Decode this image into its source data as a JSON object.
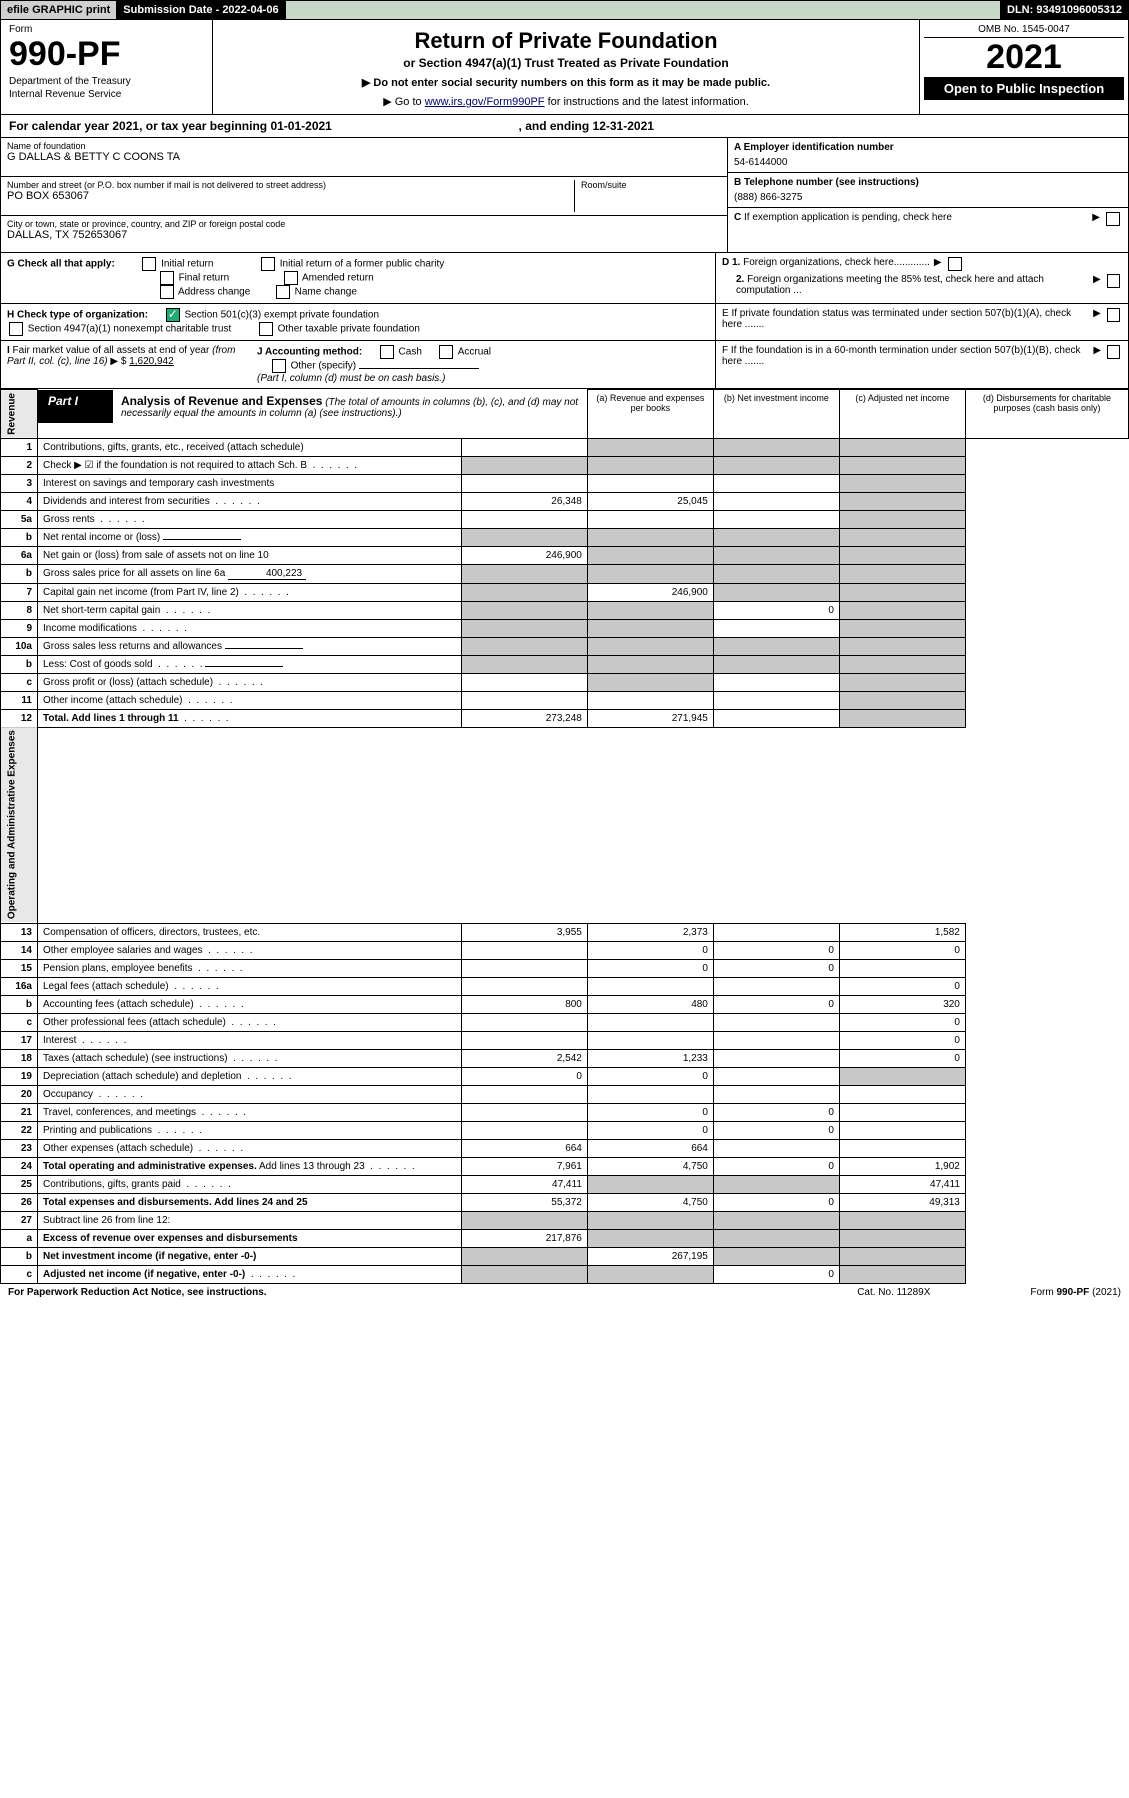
{
  "top": {
    "graphic": "efile GRAPHIC print",
    "submission_label": "Submission Date - 2022-04-06",
    "dln": "DLN: 93491096005312"
  },
  "header": {
    "form_word": "Form",
    "form_no": "990-PF",
    "dept1": "Department of the Treasury",
    "dept2": "Internal Revenue Service",
    "title": "Return of Private Foundation",
    "subtitle": "or Section 4947(a)(1) Trust Treated as Private Foundation",
    "instr1": "▶ Do not enter social security numbers on this form as it may be made public.",
    "instr2_pre": "▶ Go to ",
    "instr2_link": "www.irs.gov/Form990PF",
    "instr2_post": " for instructions and the latest information.",
    "omb": "OMB No. 1545-0047",
    "year": "2021",
    "open": "Open to Public Inspection"
  },
  "cal": {
    "line_pre": "For calendar year 2021, or tax year beginning ",
    "begin": "01-01-2021",
    "mid": ", and ending ",
    "end": "12-31-2021"
  },
  "info": {
    "name_label": "Name of foundation",
    "name": "G DALLAS & BETTY C COONS TA",
    "addr_label": "Number and street (or P.O. box number if mail is not delivered to street address)",
    "room_label": "Room/suite",
    "addr": "PO BOX 653067",
    "city_label": "City or town, state or province, country, and ZIP or foreign postal code",
    "city": "DALLAS, TX  752653067",
    "a_label": "A Employer identification number",
    "a_val": "54-6144000",
    "b_label": "B Telephone number (see instructions)",
    "b_val": "(888) 866-3275",
    "c_label": "C If exemption application is pending, check here",
    "d1": "D 1. Foreign organizations, check here.............",
    "d2": "2. Foreign organizations meeting the 85% test, check here and attach computation ...",
    "e": "E   If private foundation status was terminated under section 507(b)(1)(A), check here .......",
    "f": "F   If the foundation is in a 60-month termination under section 507(b)(1)(B), check here ......."
  },
  "g": {
    "label": "G Check all that apply:",
    "opts": [
      "Initial return",
      "Final return",
      "Address change",
      "Initial return of a former public charity",
      "Amended return",
      "Name change"
    ]
  },
  "h": {
    "label": "H Check type of organization:",
    "o1": "Section 501(c)(3) exempt private foundation",
    "o2": "Section 4947(a)(1) nonexempt charitable trust",
    "o3": "Other taxable private foundation"
  },
  "i": {
    "label": "I Fair market value of all assets at end of year (from Part II, col. (c), line 16) ▶ $",
    "val": "1,620,942"
  },
  "j": {
    "label": "J Accounting method:",
    "cash": "Cash",
    "accrual": "Accrual",
    "other": "Other (specify)",
    "note": "(Part I, column (d) must be on cash basis.)"
  },
  "part1": {
    "label": "Part I",
    "title": "Analysis of Revenue and Expenses",
    "note": "(The total of amounts in columns (b), (c), and (d) may not necessarily equal the amounts in column (a) (see instructions).)",
    "col_a": "(a) Revenue and expenses per books",
    "col_b": "(b) Net investment income",
    "col_c": "(c) Adjusted net income",
    "col_d": "(d) Disbursements for charitable purposes (cash basis only)"
  },
  "rev_label": "Revenue",
  "exp_label": "Operating and Administrative Expenses",
  "rows": [
    {
      "n": "1",
      "d": "Contributions, gifts, grants, etc., received (attach schedule)",
      "a": "",
      "b": "gray",
      "c": "gray",
      "dd": "gray"
    },
    {
      "n": "2",
      "d": "Check ▶ ☑ if the foundation is not required to attach Sch. B",
      "dots": true,
      "a": "gray",
      "b": "gray",
      "c": "gray",
      "dd": "gray"
    },
    {
      "n": "3",
      "d": "Interest on savings and temporary cash investments",
      "a": "",
      "b": "",
      "c": "",
      "dd": "gray"
    },
    {
      "n": "4",
      "d": "Dividends and interest from securities",
      "dots": true,
      "a": "26,348",
      "b": "25,045",
      "c": "",
      "dd": "gray"
    },
    {
      "n": "5a",
      "d": "Gross rents",
      "dots": true,
      "a": "",
      "b": "",
      "c": "",
      "dd": "gray"
    },
    {
      "n": "b",
      "d": "Net rental income or (loss)",
      "inline_blank": true,
      "a": "gray",
      "b": "gray",
      "c": "gray",
      "dd": "gray"
    },
    {
      "n": "6a",
      "d": "Net gain or (loss) from sale of assets not on line 10",
      "a": "246,900",
      "b": "gray",
      "c": "gray",
      "dd": "gray"
    },
    {
      "n": "b",
      "d": "Gross sales price for all assets on line 6a",
      "inline_val": "400,223",
      "a": "gray",
      "b": "gray",
      "c": "gray",
      "dd": "gray"
    },
    {
      "n": "7",
      "d": "Capital gain net income (from Part IV, line 2)",
      "dots": true,
      "a": "gray",
      "b": "246,900",
      "c": "gray",
      "dd": "gray"
    },
    {
      "n": "8",
      "d": "Net short-term capital gain",
      "dots": true,
      "a": "gray",
      "b": "gray",
      "c": "0",
      "dd": "gray"
    },
    {
      "n": "9",
      "d": "Income modifications",
      "dots": true,
      "a": "gray",
      "b": "gray",
      "c": "",
      "dd": "gray"
    },
    {
      "n": "10a",
      "d": "Gross sales less returns and allowances",
      "inline_blank": true,
      "a": "gray",
      "b": "gray",
      "c": "gray",
      "dd": "gray"
    },
    {
      "n": "b",
      "d": "Less: Cost of goods sold",
      "dots": true,
      "inline_blank": true,
      "a": "gray",
      "b": "gray",
      "c": "gray",
      "dd": "gray"
    },
    {
      "n": "c",
      "d": "Gross profit or (loss) (attach schedule)",
      "dots": true,
      "a": "",
      "b": "gray",
      "c": "",
      "dd": "gray"
    },
    {
      "n": "11",
      "d": "Other income (attach schedule)",
      "dots": true,
      "a": "",
      "b": "",
      "c": "",
      "dd": "gray"
    },
    {
      "n": "12",
      "d": "Total. Add lines 1 through 11",
      "dots": true,
      "bold": true,
      "a": "273,248",
      "b": "271,945",
      "c": "",
      "dd": "gray"
    },
    {
      "n": "13",
      "d": "Compensation of officers, directors, trustees, etc.",
      "a": "3,955",
      "b": "2,373",
      "c": "",
      "dd": "1,582"
    },
    {
      "n": "14",
      "d": "Other employee salaries and wages",
      "dots": true,
      "a": "",
      "b": "0",
      "c": "0",
      "dd": "0"
    },
    {
      "n": "15",
      "d": "Pension plans, employee benefits",
      "dots": true,
      "a": "",
      "b": "0",
      "c": "0",
      "dd": ""
    },
    {
      "n": "16a",
      "d": "Legal fees (attach schedule)",
      "dots": true,
      "a": "",
      "b": "",
      "c": "",
      "dd": "0"
    },
    {
      "n": "b",
      "d": "Accounting fees (attach schedule)",
      "dots": true,
      "a": "800",
      "b": "480",
      "c": "0",
      "dd": "320"
    },
    {
      "n": "c",
      "d": "Other professional fees (attach schedule)",
      "dots": true,
      "a": "",
      "b": "",
      "c": "",
      "dd": "0"
    },
    {
      "n": "17",
      "d": "Interest",
      "dots": true,
      "a": "",
      "b": "",
      "c": "",
      "dd": "0"
    },
    {
      "n": "18",
      "d": "Taxes (attach schedule) (see instructions)",
      "dots": true,
      "a": "2,542",
      "b": "1,233",
      "c": "",
      "dd": "0"
    },
    {
      "n": "19",
      "d": "Depreciation (attach schedule) and depletion",
      "dots": true,
      "a": "0",
      "b": "0",
      "c": "",
      "dd": "gray"
    },
    {
      "n": "20",
      "d": "Occupancy",
      "dots": true,
      "a": "",
      "b": "",
      "c": "",
      "dd": ""
    },
    {
      "n": "21",
      "d": "Travel, conferences, and meetings",
      "dots": true,
      "a": "",
      "b": "0",
      "c": "0",
      "dd": ""
    },
    {
      "n": "22",
      "d": "Printing and publications",
      "dots": true,
      "a": "",
      "b": "0",
      "c": "0",
      "dd": ""
    },
    {
      "n": "23",
      "d": "Other expenses (attach schedule)",
      "dots": true,
      "a": "664",
      "b": "664",
      "c": "",
      "dd": ""
    },
    {
      "n": "24",
      "d": "Total operating and administrative expenses. Add lines 13 through 23",
      "dots": true,
      "bold_first": true,
      "a": "7,961",
      "b": "4,750",
      "c": "0",
      "dd": "1,902"
    },
    {
      "n": "25",
      "d": "Contributions, gifts, grants paid",
      "dots": true,
      "a": "47,411",
      "b": "gray",
      "c": "gray",
      "dd": "47,411"
    },
    {
      "n": "26",
      "d": "Total expenses and disbursements. Add lines 24 and 25",
      "bold": true,
      "a": "55,372",
      "b": "4,750",
      "c": "0",
      "dd": "49,313"
    },
    {
      "n": "27",
      "d": "Subtract line 26 from line 12:",
      "a": "gray",
      "b": "gray",
      "c": "gray",
      "dd": "gray"
    },
    {
      "n": "a",
      "d": "Excess of revenue over expenses and disbursements",
      "bold": true,
      "a": "217,876",
      "b": "gray",
      "c": "gray",
      "dd": "gray"
    },
    {
      "n": "b",
      "d": "Net investment income (if negative, enter -0-)",
      "bold": true,
      "a": "gray",
      "b": "267,195",
      "c": "gray",
      "dd": "gray"
    },
    {
      "n": "c",
      "d": "Adjusted net income (if negative, enter -0-)",
      "dots": true,
      "bold": true,
      "a": "gray",
      "b": "gray",
      "c": "0",
      "dd": "gray"
    }
  ],
  "footer": {
    "left": "For Paperwork Reduction Act Notice, see instructions.",
    "mid": "Cat. No. 11289X",
    "right": "Form 990-PF (2021)"
  }
}
